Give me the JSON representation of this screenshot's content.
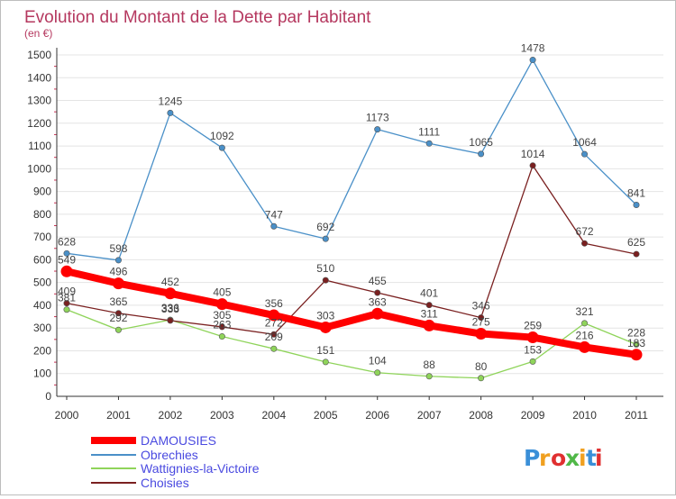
{
  "chart_data": {
    "type": "line",
    "title": "Evolution du Montant de la Dette par Habitant",
    "subtitle": "(en €)",
    "x": [
      "2000",
      "2001",
      "2002",
      "2003",
      "2004",
      "2005",
      "2006",
      "2007",
      "2008",
      "2009",
      "2010",
      "2011"
    ],
    "yticks": [
      "0",
      "100",
      "200",
      "300",
      "400",
      "500",
      "600",
      "700",
      "800",
      "900",
      "1000",
      "1100",
      "1200",
      "1300",
      "1400",
      "1500"
    ],
    "ylim": [
      0,
      1500
    ],
    "grid": "horizontal",
    "legend_position": "bottom-left",
    "series": [
      {
        "name": "DAMOUSIES",
        "color": "#ff0000",
        "values": [
          549,
          496,
          452,
          405,
          356,
          303,
          363,
          311,
          275,
          259,
          216,
          183
        ]
      },
      {
        "name": "Obrechies",
        "color": "#4a90c8",
        "values": [
          628,
          598,
          1245,
          1092,
          747,
          692,
          1173,
          1111,
          1065,
          1478,
          1064,
          841
        ]
      },
      {
        "name": "Wattignies-la-Victoire",
        "color": "#8fd45a",
        "values": [
          381,
          292,
          336,
          263,
          209,
          151,
          104,
          88,
          80,
          153,
          321,
          228
        ]
      },
      {
        "name": "Choisies",
        "color": "#7a2020",
        "values": [
          409,
          365,
          333,
          305,
          272,
          510,
          455,
          401,
          346,
          1014,
          672,
          625
        ]
      }
    ]
  },
  "branding": {
    "logo_text": "Proxiti",
    "logo_colors": [
      "#3a8fd8",
      "#f0a020",
      "#e03030",
      "#50b848",
      "#f0a020",
      "#3a8fd8",
      "#e03030"
    ]
  }
}
